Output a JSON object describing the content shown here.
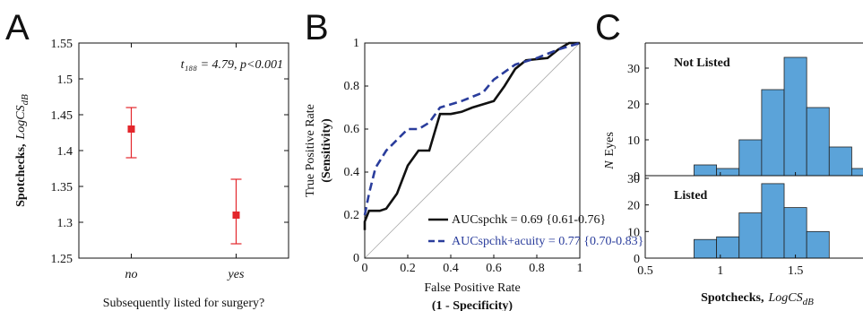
{
  "chart_data": [
    {
      "type": "errorbar",
      "panel_label": "A",
      "annotation": "t₁₈₈ = 4.79, p<0.001",
      "ylabel": [
        "Spotchecks,",
        "LogCS",
        "dB"
      ],
      "xlabel": "Subsequently listed for surgery?",
      "categories": [
        "no",
        "yes"
      ],
      "values": [
        1.43,
        1.31
      ],
      "lower": [
        1.39,
        1.27
      ],
      "upper": [
        1.46,
        1.36
      ],
      "color": "#e3262b",
      "ylim": [
        1.25,
        1.55
      ],
      "yticks": [
        1.25,
        1.3,
        1.35,
        1.4,
        1.45,
        1.5,
        1.55
      ]
    },
    {
      "type": "line",
      "panel_label": "B",
      "ylabel": [
        "True Positive Rate",
        "(Sensitivity)"
      ],
      "xlabel": [
        "False Positive Rate",
        "(1 - Specificity)"
      ],
      "series": [
        {
          "name": "AUCspchk = 0.69 {0.61-0.76}",
          "color": "#111111",
          "dash": false,
          "x": [
            0,
            0,
            0.02,
            0.07,
            0.1,
            0.15,
            0.2,
            0.25,
            0.3,
            0.35,
            0.4,
            0.45,
            0.5,
            0.6,
            0.65,
            0.7,
            0.75,
            0.85,
            0.9,
            0.95,
            1
          ],
          "values": [
            0.13,
            0.17,
            0.22,
            0.22,
            0.23,
            0.3,
            0.43,
            0.5,
            0.5,
            0.67,
            0.67,
            0.68,
            0.7,
            0.73,
            0.8,
            0.88,
            0.92,
            0.93,
            0.97,
            1,
            1
          ]
        },
        {
          "name": "AUCspchk+acuity = 0.77 {0.70-0.83}",
          "color": "#2a3d9c",
          "dash": true,
          "x": [
            0,
            0.02,
            0.05,
            0.1,
            0.15,
            0.2,
            0.25,
            0.3,
            0.35,
            0.45,
            0.55,
            0.6,
            0.7,
            0.8,
            0.9,
            1
          ],
          "values": [
            0.2,
            0.3,
            0.42,
            0.5,
            0.55,
            0.6,
            0.6,
            0.63,
            0.7,
            0.73,
            0.77,
            0.83,
            0.9,
            0.93,
            0.97,
            1
          ]
        }
      ],
      "xlim": [
        0,
        1
      ],
      "ylim": [
        0,
        1
      ],
      "xticks": [
        0,
        0.2,
        0.4,
        0.6,
        0.8,
        1
      ],
      "yticks": [
        0,
        0.2,
        0.4,
        0.6,
        0.8,
        1
      ]
    },
    {
      "type": "histogram",
      "panel_label": "C",
      "ylabel": [
        "N",
        "Eyes"
      ],
      "xlabel": [
        "Spotchecks,",
        "LogCS",
        "dB"
      ],
      "color": "#5ba3d9",
      "xlim": [
        0.5,
        1.95
      ],
      "xticks": [
        0.5,
        1,
        1.5
      ],
      "panels": [
        {
          "title": "Not Listed",
          "bins": [
            0.825,
            0.975,
            1.125,
            1.275,
            1.425,
            1.575,
            1.725,
            1.875,
            2.025
          ],
          "values": [
            3,
            2,
            10,
            24,
            33,
            19,
            8,
            2
          ],
          "ylim": [
            0,
            37
          ],
          "yticks": [
            0,
            10,
            20,
            30
          ]
        },
        {
          "title": "Listed",
          "bins": [
            0.825,
            0.975,
            1.125,
            1.275,
            1.425,
            1.575,
            1.725
          ],
          "values": [
            7,
            8,
            17,
            28,
            19,
            10
          ],
          "ylim": [
            0,
            31
          ],
          "yticks": [
            0,
            10,
            20,
            30
          ]
        }
      ]
    }
  ]
}
